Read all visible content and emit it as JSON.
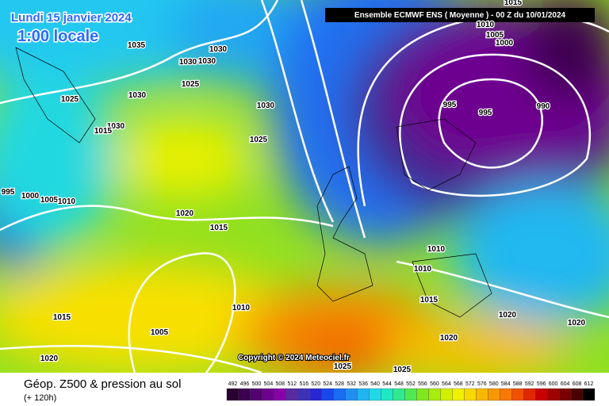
{
  "header": {
    "date": "Lundi 15 janvier 2024",
    "time": "1:00 locale",
    "model": "Ensemble ECMWF ENS  ( Moyenne )  -  00 Z du 10/01/2024"
  },
  "copyright": "Copyright © 2024 Meteociel.fr",
  "footer": {
    "title": "Géop. Z500 & pression au sol",
    "subtitle": "(+ 120h)"
  },
  "isobar_labels": [
    "1035",
    "1030",
    "1030",
    "1030",
    "1025",
    "1030",
    "1025",
    "1030",
    "1030",
    "1015",
    "1025",
    "995",
    "1000",
    "1005",
    "1010",
    "1020",
    "1015",
    "1010",
    "1005",
    "1015",
    "1020",
    "1025",
    "1025",
    "1020",
    "1015",
    "1010",
    "1010",
    "1020",
    "1020",
    "995",
    "995",
    "990",
    "1000",
    "1005",
    "1010",
    "1015"
  ],
  "legend": {
    "values": [
      492,
      496,
      500,
      504,
      508,
      512,
      516,
      520,
      524,
      528,
      532,
      536,
      540,
      544,
      548,
      552,
      556,
      560,
      564,
      568,
      572,
      576,
      580,
      584,
      588,
      592,
      596,
      600,
      604,
      608,
      612
    ],
    "colors": [
      "#2a0030",
      "#3c0050",
      "#540070",
      "#6e0090",
      "#8800a8",
      "#5a2aa0",
      "#3c32b4",
      "#2828d0",
      "#1a48e8",
      "#1a6cf0",
      "#2090f0",
      "#20b4f0",
      "#20d8e8",
      "#20e8c0",
      "#30e890",
      "#50e850",
      "#80e820",
      "#a8ec10",
      "#d0f000",
      "#f0f000",
      "#f8d800",
      "#f8b800",
      "#f89800",
      "#f87800",
      "#f05000",
      "#e02800",
      "#c80000",
      "#a00000",
      "#780000",
      "#4a0000",
      "#000000"
    ]
  }
}
